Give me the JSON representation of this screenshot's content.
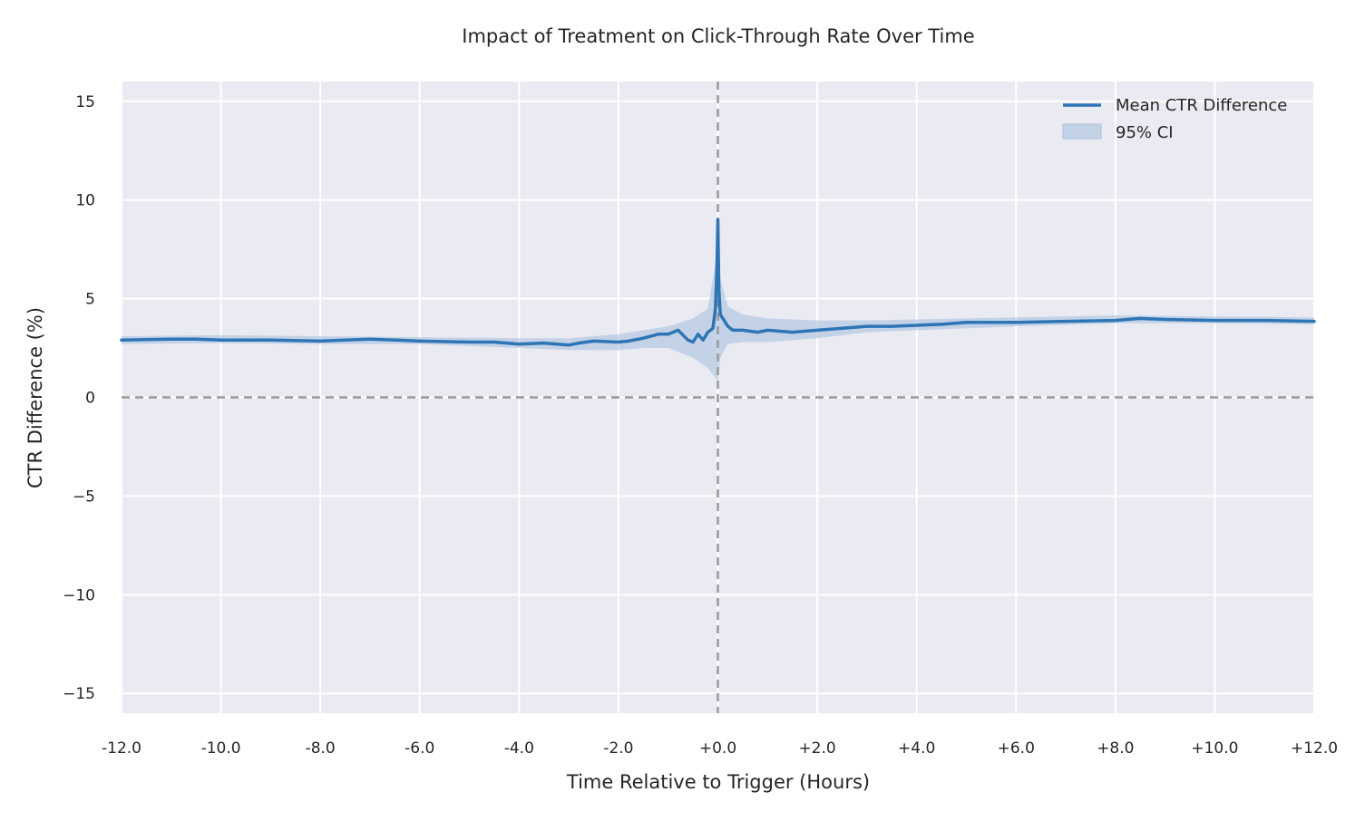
{
  "chart_data": {
    "type": "line",
    "title": "Impact of Treatment on Click-Through Rate Over Time",
    "xlabel": "Time Relative to Trigger (Hours)",
    "ylabel": "CTR Difference (%)",
    "xlim": [
      -12,
      12
    ],
    "ylim": [
      -16,
      16
    ],
    "x_ticks": [
      -12,
      -10,
      -8,
      -6,
      -4,
      -2,
      0,
      2,
      4,
      6,
      8,
      10,
      12
    ],
    "x_tick_labels": [
      "-12.0",
      "-10.0",
      "-8.0",
      "-6.0",
      "-4.0",
      "-2.0",
      "+0.0",
      "+2.0",
      "+4.0",
      "+6.0",
      "+8.0",
      "+10.0",
      "+12.0"
    ],
    "y_ticks": [
      15,
      10,
      5,
      0,
      -5,
      -10,
      -15
    ],
    "y_tick_labels": [
      "15",
      "10",
      "5",
      "0",
      "−5",
      "−10",
      "−15"
    ],
    "grid": true,
    "legend_position": "top-right",
    "reference_lines": {
      "x": 0,
      "y": 0
    },
    "colors": {
      "line": "#2e75b6",
      "ci_fill": "#a9c2de",
      "plot_bg": "#eaeaf2",
      "grid": "#ffffff",
      "ref_line": "#9a9a9a"
    },
    "series": [
      {
        "name": "Mean CTR Difference",
        "x": [
          -12,
          -11,
          -10.5,
          -10,
          -9,
          -8,
          -7.5,
          -7,
          -6.5,
          -6,
          -5,
          -4.5,
          -4,
          -3.5,
          -3,
          -2.8,
          -2.5,
          -2,
          -1.8,
          -1.5,
          -1.2,
          -1,
          -0.8,
          -0.6,
          -0.5,
          -0.4,
          -0.3,
          -0.2,
          -0.1,
          -0.05,
          -0.02,
          0,
          0.02,
          0.05,
          0.1,
          0.2,
          0.3,
          0.5,
          0.8,
          1,
          1.5,
          2,
          2.5,
          3,
          3.5,
          4,
          4.5,
          5,
          5.5,
          6,
          7,
          8,
          8.5,
          9,
          10,
          11,
          12
        ],
        "y": [
          2.9,
          2.95,
          2.95,
          2.9,
          2.9,
          2.85,
          2.9,
          2.95,
          2.9,
          2.85,
          2.8,
          2.8,
          2.7,
          2.75,
          2.65,
          2.75,
          2.85,
          2.8,
          2.85,
          3.0,
          3.2,
          3.2,
          3.4,
          2.9,
          2.8,
          3.2,
          2.9,
          3.3,
          3.5,
          4.5,
          6.5,
          9.0,
          5.5,
          4.2,
          4.0,
          3.6,
          3.4,
          3.4,
          3.3,
          3.4,
          3.3,
          3.4,
          3.5,
          3.6,
          3.6,
          3.65,
          3.7,
          3.8,
          3.8,
          3.8,
          3.85,
          3.9,
          4.0,
          3.95,
          3.9,
          3.9,
          3.85
        ]
      }
    ],
    "confidence_band": {
      "name": "95% CI",
      "x": [
        -12,
        -10,
        -8,
        -6,
        -4,
        -3,
        -2,
        -1.5,
        -1,
        -0.5,
        -0.2,
        -0.05,
        0,
        0.05,
        0.2,
        0.5,
        1,
        2,
        3,
        4,
        6,
        8,
        10,
        12
      ],
      "lower": [
        2.7,
        2.75,
        2.7,
        2.7,
        2.5,
        2.4,
        2.4,
        2.5,
        2.5,
        2.0,
        1.5,
        1.0,
        0.8,
        2.0,
        2.7,
        2.8,
        2.8,
        3.0,
        3.3,
        3.4,
        3.6,
        3.75,
        3.75,
        3.7
      ],
      "upper": [
        3.1,
        3.15,
        3.1,
        3.05,
        3.0,
        3.0,
        3.2,
        3.4,
        3.6,
        4.0,
        4.5,
        6.8,
        9.0,
        6.0,
        4.6,
        4.2,
        4.0,
        3.9,
        3.9,
        3.95,
        4.05,
        4.15,
        4.1,
        4.05
      ]
    }
  }
}
